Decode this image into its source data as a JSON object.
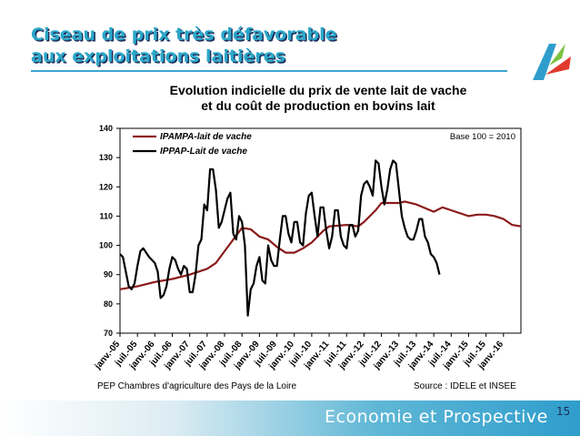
{
  "slide": {
    "title_line1": "Ciseau de prix très défavorable",
    "title_line2": "aux exploitations laitières",
    "footer_left": "PEP Chambres d'agriculture des Pays de la Loire",
    "footer_right": "Source : IDELE et INSEE",
    "band_label": "Economie et Prospective",
    "page_number": "15"
  },
  "colors": {
    "title": "#2ba7c9",
    "title_shadow": "#1d2f5a",
    "ipampa": "#8b1a1a",
    "ippap": "#000000"
  },
  "chart_data": {
    "type": "line",
    "title_line1": "Evolution indicielle du prix de vente lait de vache",
    "title_line2": "et du coût de production en bovins lait",
    "annotation": "Base 100 = 2010",
    "legend_position": "top-left",
    "ylim": [
      70,
      140
    ],
    "yticks": [
      "70",
      "80",
      "90",
      "100",
      "110",
      "120",
      "130",
      "140"
    ],
    "x_start": "2005-01",
    "x_end": "2016-07",
    "xticks": [
      {
        "label": "janv.-05",
        "m": 0
      },
      {
        "label": "juil.-05",
        "m": 6
      },
      {
        "label": "janv.-06",
        "m": 12
      },
      {
        "label": "juil.-06",
        "m": 18
      },
      {
        "label": "janv.-07",
        "m": 24
      },
      {
        "label": "juil.-07",
        "m": 30
      },
      {
        "label": "janv.-08",
        "m": 36
      },
      {
        "label": "juil.-08",
        "m": 42
      },
      {
        "label": "janv.-09",
        "m": 48
      },
      {
        "label": "juil.-09",
        "m": 54
      },
      {
        "label": "janv.-10",
        "m": 60
      },
      {
        "label": "juil.-10",
        "m": 66
      },
      {
        "label": "janv.-11",
        "m": 72
      },
      {
        "label": "juil.-11",
        "m": 78
      },
      {
        "label": "janv.-12",
        "m": 84
      },
      {
        "label": "juil.-12",
        "m": 90
      },
      {
        "label": "janv.-13",
        "m": 96
      },
      {
        "label": "juil.-13",
        "m": 102
      },
      {
        "label": "janv.-14",
        "m": 108
      },
      {
        "label": "juil.-14",
        "m": 114
      },
      {
        "label": "janv.-15",
        "m": 120
      },
      {
        "label": "juil.-15",
        "m": 126
      },
      {
        "label": "janv.-16",
        "m": 132
      }
    ],
    "series": [
      {
        "name": "IPAMPA-lait de vache",
        "color": "#8b1a1a",
        "points": [
          [
            0,
            85
          ],
          [
            6,
            86
          ],
          [
            12,
            87.5
          ],
          [
            18,
            88.5
          ],
          [
            24,
            90
          ],
          [
            30,
            92
          ],
          [
            33,
            94
          ],
          [
            36,
            98
          ],
          [
            42,
            106
          ],
          [
            45,
            105.5
          ],
          [
            48,
            103
          ],
          [
            51,
            102
          ],
          [
            54,
            99.5
          ],
          [
            57,
            97.5
          ],
          [
            60,
            97.5
          ],
          [
            63,
            99
          ],
          [
            66,
            101
          ],
          [
            70,
            105
          ],
          [
            72,
            106.5
          ],
          [
            78,
            107
          ],
          [
            82,
            106.5
          ],
          [
            84,
            108
          ],
          [
            88,
            112
          ],
          [
            90,
            114.5
          ],
          [
            96,
            114.5
          ],
          [
            98,
            115
          ],
          [
            102,
            114
          ],
          [
            108,
            111.5
          ],
          [
            111,
            113
          ],
          [
            114,
            112
          ],
          [
            120,
            110
          ],
          [
            123,
            110.5
          ],
          [
            126,
            110.5
          ],
          [
            129,
            110
          ],
          [
            132,
            109
          ],
          [
            135,
            107
          ],
          [
            138,
            106.5
          ]
        ]
      },
      {
        "name": "IPPAP-Lait de vache",
        "color": "#000000",
        "points": [
          [
            0,
            97
          ],
          [
            1,
            96
          ],
          [
            3,
            86
          ],
          [
            4,
            85
          ],
          [
            5,
            87
          ],
          [
            6,
            93
          ],
          [
            7,
            98
          ],
          [
            8,
            99
          ],
          [
            10,
            96
          ],
          [
            12,
            94
          ],
          [
            13,
            91
          ],
          [
            14,
            82
          ],
          [
            15,
            83
          ],
          [
            16,
            86
          ],
          [
            17,
            92
          ],
          [
            18,
            96
          ],
          [
            19,
            95
          ],
          [
            20,
            92
          ],
          [
            21,
            90
          ],
          [
            22,
            93
          ],
          [
            23,
            92
          ],
          [
            24,
            84
          ],
          [
            25,
            84
          ],
          [
            26,
            90
          ],
          [
            27,
            100
          ],
          [
            28,
            102
          ],
          [
            29,
            114
          ],
          [
            30,
            112
          ],
          [
            31,
            126
          ],
          [
            32,
            126
          ],
          [
            33,
            119
          ],
          [
            34,
            106
          ],
          [
            35,
            108
          ],
          [
            36,
            112
          ],
          [
            37,
            116
          ],
          [
            38,
            118
          ],
          [
            39,
            104
          ],
          [
            40,
            102
          ],
          [
            41,
            110
          ],
          [
            42,
            108
          ],
          [
            43,
            100
          ],
          [
            44,
            76
          ],
          [
            45,
            85
          ],
          [
            46,
            87
          ],
          [
            47,
            93
          ],
          [
            48,
            96
          ],
          [
            49,
            88
          ],
          [
            50,
            87
          ],
          [
            51,
            100
          ],
          [
            52,
            95
          ],
          [
            53,
            93
          ],
          [
            54,
            93
          ],
          [
            55,
            102
          ],
          [
            56,
            110
          ],
          [
            57,
            110
          ],
          [
            58,
            104
          ],
          [
            59,
            101
          ],
          [
            60,
            108
          ],
          [
            61,
            108
          ],
          [
            62,
            101
          ],
          [
            63,
            100
          ],
          [
            64,
            111
          ],
          [
            65,
            117
          ],
          [
            66,
            118
          ],
          [
            67,
            110
          ],
          [
            68,
            103
          ],
          [
            69,
            113
          ],
          [
            70,
            113
          ],
          [
            71,
            105
          ],
          [
            72,
            99
          ],
          [
            73,
            103
          ],
          [
            74,
            112
          ],
          [
            75,
            112
          ],
          [
            76,
            103
          ],
          [
            77,
            100
          ],
          [
            78,
            99
          ],
          [
            79,
            107
          ],
          [
            80,
            107
          ],
          [
            81,
            103
          ],
          [
            82,
            105
          ],
          [
            83,
            117
          ],
          [
            84,
            121
          ],
          [
            85,
            122
          ],
          [
            86,
            120
          ],
          [
            87,
            117
          ],
          [
            88,
            129
          ],
          [
            89,
            128
          ],
          [
            90,
            120
          ],
          [
            91,
            114
          ],
          [
            92,
            119
          ],
          [
            93,
            126
          ],
          [
            94,
            129
          ],
          [
            95,
            128
          ],
          [
            96,
            119
          ],
          [
            97,
            110
          ],
          [
            98,
            106
          ],
          [
            99,
            103
          ],
          [
            100,
            102
          ],
          [
            101,
            102
          ],
          [
            102,
            105
          ],
          [
            103,
            109
          ],
          [
            104,
            109
          ],
          [
            105,
            103
          ],
          [
            106,
            101
          ],
          [
            107,
            97
          ],
          [
            108,
            96
          ],
          [
            109,
            94
          ],
          [
            110,
            90
          ]
        ]
      }
    ]
  }
}
